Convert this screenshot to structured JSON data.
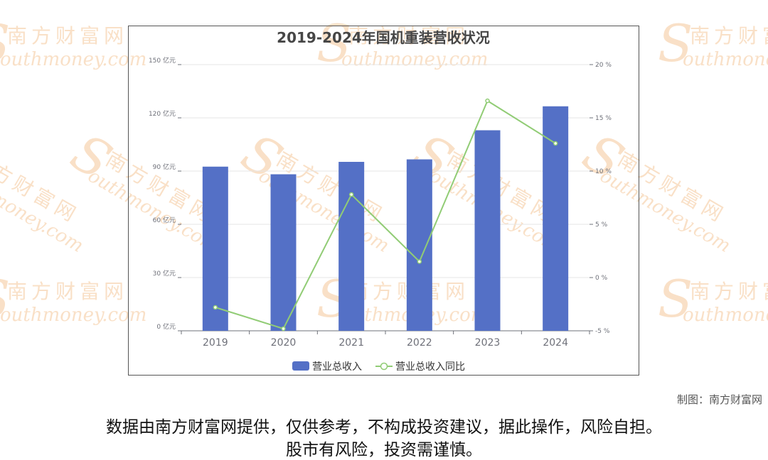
{
  "watermark": {
    "cn": "南方财富网",
    "en": "outhmoney.com",
    "logo_letter": "S",
    "color": "#f5c89a"
  },
  "chart_data": {
    "type": "bar",
    "title": "2019-2024年国机重装营收状况",
    "categories": [
      "2019",
      "2020",
      "2021",
      "2022",
      "2023",
      "2024"
    ],
    "y_left": {
      "ylim": [
        0,
        150
      ],
      "ticks": [
        0,
        30,
        60,
        90,
        120,
        150
      ],
      "unit": "亿元"
    },
    "y_right": {
      "ylim": [
        -5,
        20
      ],
      "ticks": [
        -5,
        0,
        5,
        10,
        15,
        20
      ],
      "unit": "%"
    },
    "series": [
      {
        "name": "营业总收入",
        "type": "bar",
        "axis": "left",
        "color": "#5470c6",
        "values": [
          92.5,
          88.2,
          95.2,
          96.6,
          113.0,
          126.5
        ]
      },
      {
        "name": "营业总收入同比",
        "type": "line",
        "axis": "right",
        "color": "#91cc75",
        "values": [
          -2.8,
          -4.8,
          7.8,
          1.5,
          16.6,
          12.6
        ]
      }
    ],
    "legend_position": "bottom-center",
    "grid": true
  },
  "credit": "制图：南方财富网",
  "disclaimer": {
    "line1": "数据由南方财富网提供，仅供参考，不构成投资建议，据此操作，风险自担。",
    "line2": "股市有风险，投资需谨慎。"
  }
}
